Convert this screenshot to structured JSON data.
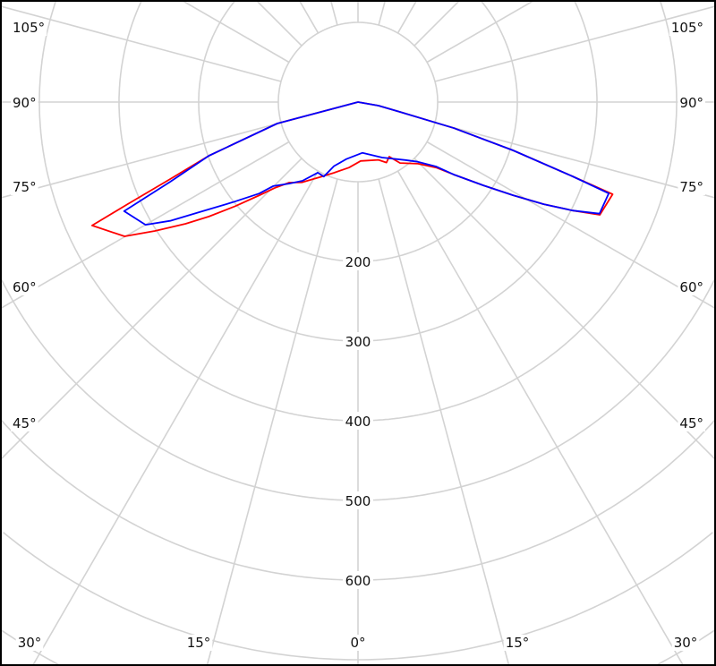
{
  "chart_data": {
    "type": "polar-line",
    "title": "",
    "angle_zero": "bottom",
    "radial_range": [
      0,
      800
    ],
    "radial_ticks": [
      100,
      200,
      300,
      400,
      500,
      600,
      700,
      800
    ],
    "radial_tick_labels": [
      "200",
      "300",
      "400",
      "500",
      "600"
    ],
    "angle_step": 15,
    "angle_labels_left": [
      "105°",
      "90°",
      "75°",
      "60°",
      "45°"
    ],
    "angle_labels_bottom": [
      "30°",
      "15°",
      "0°",
      "15°",
      "30°"
    ],
    "angle_labels_right": [
      "105°",
      "90°",
      "75°",
      "60°",
      "45°"
    ],
    "grid": true,
    "grid_color": "#d3d3d3",
    "series": [
      {
        "color": "#ff0000",
        "points": [
          [
            -90,
            0
          ],
          [
            -75.1,
            105
          ],
          [
            -70.2,
            199
          ],
          [
            -67.7,
            255
          ],
          [
            -66.1,
            316
          ],
          [
            -65.1,
            368
          ],
          [
            -60.1,
            338
          ],
          [
            -57.6,
            302
          ],
          [
            -54.8,
            265
          ],
          [
            -52.5,
            236
          ],
          [
            -49.7,
            202
          ],
          [
            -46.6,
            170
          ],
          [
            -44.1,
            150
          ],
          [
            -40.5,
            133
          ],
          [
            -35,
            123
          ],
          [
            -27.1,
            106
          ],
          [
            -18.9,
            94
          ],
          [
            -7.8,
            83
          ],
          [
            2.6,
            74
          ],
          [
            19.5,
            77
          ],
          [
            25.2,
            84
          ],
          [
            29.8,
            79
          ],
          [
            34.6,
            93
          ],
          [
            44.2,
            108
          ],
          [
            50,
            128
          ],
          [
            52.9,
            151
          ],
          [
            56.4,
            189
          ],
          [
            59,
            227
          ],
          [
            61.2,
            266
          ],
          [
            63.2,
            302
          ],
          [
            65,
            335
          ],
          [
            70.1,
            340
          ],
          [
            70.9,
            285
          ],
          [
            72.7,
            204
          ],
          [
            74.8,
            125
          ],
          [
            76.8,
            54
          ],
          [
            80,
            26
          ],
          [
            90,
            0
          ]
        ]
      },
      {
        "color": "#0000ff",
        "points": [
          [
            -90,
            0
          ],
          [
            -75.1,
            105
          ],
          [
            -70.2,
            199
          ],
          [
            -67,
            256
          ],
          [
            -65,
            324
          ],
          [
            -60,
            308
          ],
          [
            -57.7,
            279
          ],
          [
            -55.2,
            242
          ],
          [
            -51.3,
            201
          ],
          [
            -47.2,
            169
          ],
          [
            -45.3,
            150
          ],
          [
            -40.2,
            134
          ],
          [
            -35.2,
            121
          ],
          [
            -29.7,
            102
          ],
          [
            -24.6,
            103
          ],
          [
            -20.6,
            86
          ],
          [
            -11.5,
            73
          ],
          [
            5,
            64
          ],
          [
            23.5,
            76
          ],
          [
            39.2,
            94
          ],
          [
            45,
            106
          ],
          [
            50.4,
            127
          ],
          [
            52.9,
            151
          ],
          [
            56.4,
            189
          ],
          [
            59,
            227
          ],
          [
            61.2,
            266
          ],
          [
            63.2,
            302
          ],
          [
            65.2,
            334
          ],
          [
            70,
            335
          ],
          [
            70.9,
            285
          ],
          [
            72.7,
            204
          ],
          [
            74.8,
            125
          ],
          [
            76.8,
            54
          ],
          [
            80,
            26
          ],
          [
            90,
            0
          ]
        ]
      }
    ]
  }
}
